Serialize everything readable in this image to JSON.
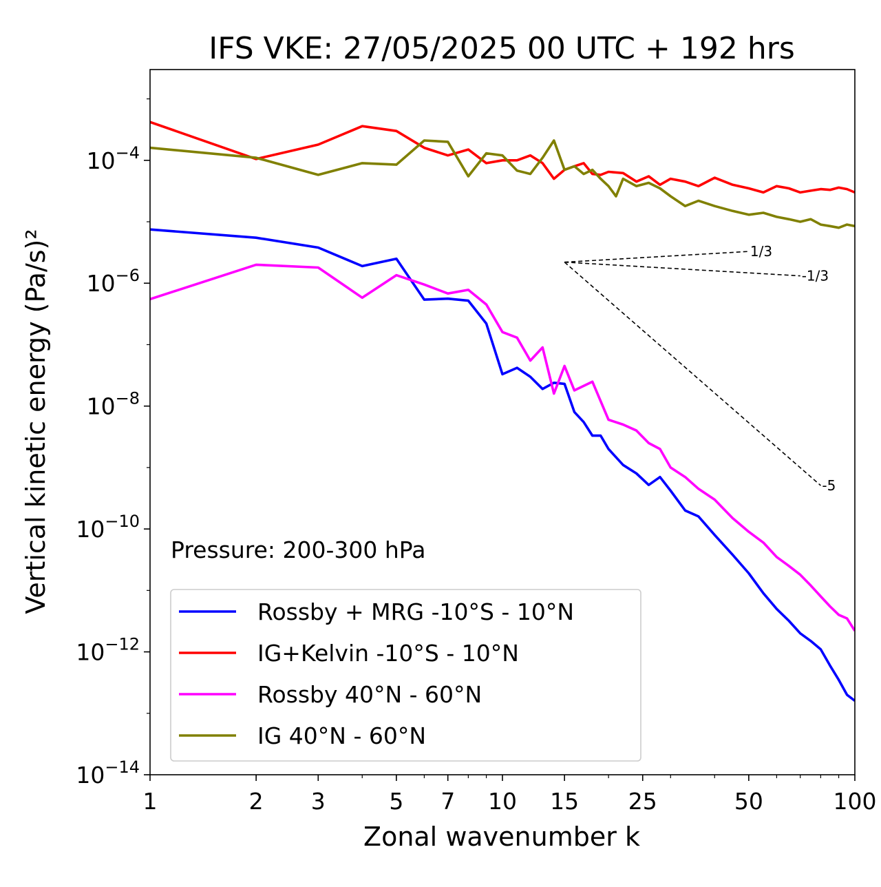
{
  "chart_data": {
    "type": "line",
    "title": "IFS VKE: 27/05/2025 00 UTC + 192 hrs",
    "xlabel": "Zonal wavenumber k",
    "ylabel": "Vertical kinetic energy (Pa/s)²",
    "xscale": "log",
    "yscale": "log",
    "xlim": [
      1,
      100
    ],
    "ylim": [
      1e-14,
      0.003
    ],
    "x_ticks": [
      1,
      2,
      3,
      5,
      7,
      10,
      15,
      25,
      50,
      100
    ],
    "y_ticks": [
      {
        "value": 0.0001,
        "label": "10^-4"
      },
      {
        "value": 1e-06,
        "label": "10^-6"
      },
      {
        "value": 1e-08,
        "label": "10^-8"
      },
      {
        "value": 1e-10,
        "label": "10^-10"
      },
      {
        "value": 1e-12,
        "label": "10^-12"
      },
      {
        "value": 1e-14,
        "label": "10^-14"
      }
    ],
    "annotation": "Pressure: 200-300 hPa",
    "legend_position": "bottom-left",
    "series": [
      {
        "name": "Rossby + MRG -10°S - 10°N",
        "color": "#0000ff",
        "points": [
          [
            1,
            7.5e-06
          ],
          [
            2,
            5.5e-06
          ],
          [
            3,
            3.8e-06
          ],
          [
            4,
            1.9e-06
          ],
          [
            5,
            2.5e-06
          ],
          [
            6,
            5.4e-07
          ],
          [
            7,
            5.6e-07
          ],
          [
            8,
            5.2e-07
          ],
          [
            9,
            2.2e-07
          ],
          [
            10,
            3.3e-08
          ],
          [
            11,
            4.2e-08
          ],
          [
            12,
            3e-08
          ],
          [
            13,
            1.9e-08
          ],
          [
            14,
            2.4e-08
          ],
          [
            15,
            2.3e-08
          ],
          [
            16,
            8e-09
          ],
          [
            17,
            5.5e-09
          ],
          [
            18,
            3.3e-09
          ],
          [
            19,
            3.3e-09
          ],
          [
            20,
            2e-09
          ],
          [
            22,
            1.1e-09
          ],
          [
            24,
            8e-10
          ],
          [
            26,
            5.2e-10
          ],
          [
            28,
            7e-10
          ],
          [
            30,
            4.2e-10
          ],
          [
            33,
            2e-10
          ],
          [
            36,
            1.6e-10
          ],
          [
            40,
            8e-11
          ],
          [
            45,
            3.8e-11
          ],
          [
            50,
            1.9e-11
          ],
          [
            55,
            9e-12
          ],
          [
            60,
            5e-12
          ],
          [
            65,
            3.2e-12
          ],
          [
            70,
            2e-12
          ],
          [
            75,
            1.5e-12
          ],
          [
            80,
            1.1e-12
          ],
          [
            85,
            6e-13
          ],
          [
            90,
            3.5e-13
          ],
          [
            95,
            2e-13
          ],
          [
            100,
            1.6e-13
          ]
        ]
      },
      {
        "name": "IG+Kelvin -10°S - 10°N",
        "color": "#ff0000",
        "points": [
          [
            1,
            0.00042
          ],
          [
            2,
            0.000105
          ],
          [
            3,
            0.00018
          ],
          [
            4,
            0.00036
          ],
          [
            5,
            0.0003
          ],
          [
            6,
            0.00016
          ],
          [
            7,
            0.00012
          ],
          [
            8,
            0.00015
          ],
          [
            9,
            9e-05
          ],
          [
            10,
            0.0001
          ],
          [
            11,
            0.0001
          ],
          [
            12,
            0.00012
          ],
          [
            13,
            9e-05
          ],
          [
            14,
            5e-05
          ],
          [
            15,
            7e-05
          ],
          [
            16,
            8e-05
          ],
          [
            17,
            9e-05
          ],
          [
            18,
            6e-05
          ],
          [
            19,
            5.8e-05
          ],
          [
            20,
            6.5e-05
          ],
          [
            22,
            6.2e-05
          ],
          [
            24,
            4.5e-05
          ],
          [
            26,
            5.5e-05
          ],
          [
            28,
            4e-05
          ],
          [
            30,
            5e-05
          ],
          [
            33,
            4.5e-05
          ],
          [
            36,
            3.8e-05
          ],
          [
            40,
            5.2e-05
          ],
          [
            45,
            4e-05
          ],
          [
            50,
            3.5e-05
          ],
          [
            55,
            3e-05
          ],
          [
            60,
            3.8e-05
          ],
          [
            65,
            3.5e-05
          ],
          [
            70,
            3e-05
          ],
          [
            75,
            3.2e-05
          ],
          [
            80,
            3.4e-05
          ],
          [
            85,
            3.3e-05
          ],
          [
            90,
            3.6e-05
          ],
          [
            95,
            3.4e-05
          ],
          [
            100,
            3e-05
          ]
        ]
      },
      {
        "name": "Rossby 40°N - 60°N",
        "color": "#ff00ff",
        "points": [
          [
            1,
            5.5e-07
          ],
          [
            2,
            2e-06
          ],
          [
            3,
            1.8e-06
          ],
          [
            4,
            5.8e-07
          ],
          [
            5,
            1.35e-06
          ],
          [
            6,
            9.5e-07
          ],
          [
            7,
            6.8e-07
          ],
          [
            8,
            7.8e-07
          ],
          [
            9,
            4.5e-07
          ],
          [
            10,
            1.6e-07
          ],
          [
            11,
            1.3e-07
          ],
          [
            12,
            5.5e-08
          ],
          [
            13,
            9e-08
          ],
          [
            14,
            1.6e-08
          ],
          [
            15,
            4.5e-08
          ],
          [
            16,
            1.8e-08
          ],
          [
            18,
            2.5e-08
          ],
          [
            20,
            6e-09
          ],
          [
            22,
            5e-09
          ],
          [
            24,
            4e-09
          ],
          [
            26,
            2.5e-09
          ],
          [
            28,
            2e-09
          ],
          [
            30,
            1e-09
          ],
          [
            33,
            7e-10
          ],
          [
            36,
            4.5e-10
          ],
          [
            40,
            3e-10
          ],
          [
            45,
            1.5e-10
          ],
          [
            50,
            9e-11
          ],
          [
            55,
            6e-11
          ],
          [
            60,
            3.5e-11
          ],
          [
            65,
            2.5e-11
          ],
          [
            70,
            1.8e-11
          ],
          [
            75,
            1.2e-11
          ],
          [
            80,
            8e-12
          ],
          [
            85,
            5.5e-12
          ],
          [
            90,
            4e-12
          ],
          [
            95,
            3.5e-12
          ],
          [
            100,
            2.2e-12
          ]
        ]
      },
      {
        "name": "IG 40°N - 60°N",
        "color": "#808000",
        "points": [
          [
            1,
            0.00016
          ],
          [
            2,
            0.00011
          ],
          [
            3,
            5.8e-05
          ],
          [
            4,
            9e-05
          ],
          [
            5,
            8.5e-05
          ],
          [
            6,
            0.00021
          ],
          [
            7,
            0.0002
          ],
          [
            8,
            5.5e-05
          ],
          [
            9,
            0.00013
          ],
          [
            10,
            0.00012
          ],
          [
            11,
            6.8e-05
          ],
          [
            12,
            6e-05
          ],
          [
            13,
            0.00011
          ],
          [
            14,
            0.00021
          ],
          [
            15,
            7e-05
          ],
          [
            16,
            8e-05
          ],
          [
            17,
            6e-05
          ],
          [
            18,
            7e-05
          ],
          [
            19,
            5e-05
          ],
          [
            20,
            3.8e-05
          ],
          [
            21,
            2.6e-05
          ],
          [
            22,
            5e-05
          ],
          [
            24,
            3.8e-05
          ],
          [
            26,
            4.3e-05
          ],
          [
            28,
            3.5e-05
          ],
          [
            30,
            2.6e-05
          ],
          [
            33,
            1.8e-05
          ],
          [
            36,
            2.2e-05
          ],
          [
            40,
            1.8e-05
          ],
          [
            45,
            1.5e-05
          ],
          [
            50,
            1.3e-05
          ],
          [
            55,
            1.4e-05
          ],
          [
            60,
            1.2e-05
          ],
          [
            65,
            1.1e-05
          ],
          [
            70,
            1e-05
          ],
          [
            75,
            1.1e-05
          ],
          [
            80,
            9e-06
          ],
          [
            85,
            8.5e-06
          ],
          [
            90,
            8e-06
          ],
          [
            95,
            9e-06
          ],
          [
            100,
            8.5e-06
          ]
        ]
      }
    ],
    "reference_lines": [
      {
        "label": "1/3",
        "slope": 0.3333,
        "x0": 15,
        "y0": 2.2e-06,
        "x1": 50
      },
      {
        "label": "-1/3",
        "slope": -0.3333,
        "x0": 15,
        "y0": 2.2e-06,
        "x1": 70
      },
      {
        "label": "-5",
        "slope": -5,
        "x0": 15,
        "y0": 2.2e-06,
        "x1": 80
      }
    ]
  }
}
